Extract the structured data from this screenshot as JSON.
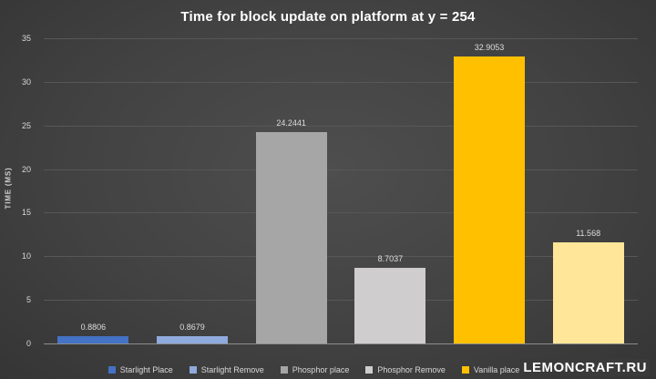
{
  "title": "Time for block update on platform at y = 254",
  "watermark": {
    "text": "LEMONCRAFT.RU"
  },
  "chart_data": {
    "type": "bar",
    "title": "Time for block update on platform at y = 254",
    "xlabel": "",
    "ylabel": "TIME (MS)",
    "ylim": [
      0,
      35
    ],
    "yticks": [
      0,
      5,
      10,
      15,
      20,
      25,
      30,
      35
    ],
    "grid": true,
    "legend_position": "bottom",
    "series": [
      {
        "name": "Starlight Place",
        "value": 0.8806,
        "label": "0.8806",
        "color": "#4472C4"
      },
      {
        "name": "Starlight Remove",
        "value": 0.8679,
        "label": "0.8679",
        "color": "#8FAADC"
      },
      {
        "name": "Phosphor place",
        "value": 24.2441,
        "label": "24.2441",
        "color": "#A6A6A6"
      },
      {
        "name": "Phosphor Remove",
        "value": 8.7037,
        "label": "8.7037",
        "color": "#CFCDCD"
      },
      {
        "name": "Vanilla place",
        "value": 32.9053,
        "label": "32.9053",
        "color": "#FFC000"
      },
      {
        "name": "",
        "value": 11.568,
        "label": "11.568",
        "color": "#FFE699",
        "legend_label_hidden": true
      }
    ]
  }
}
